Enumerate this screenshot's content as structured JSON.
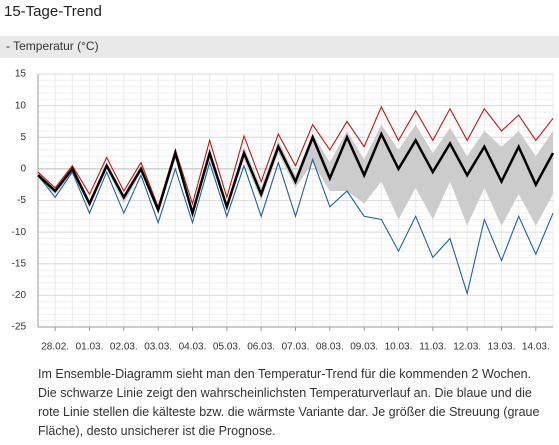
{
  "header": {
    "title": "15-Tage-Trend"
  },
  "chart_data": {
    "type": "line",
    "title": "- Temperatur (°C)",
    "categories": [
      null,
      "28.02.",
      null,
      "01.03.",
      null,
      "02.03.",
      null,
      "03.03.",
      null,
      "04.03.",
      null,
      "05.03.",
      null,
      "06.03.",
      null,
      "07.03.",
      null,
      "08.03.",
      null,
      "09.03.",
      null,
      "10.03.",
      null,
      "11.03.",
      null,
      "12.03.",
      null,
      "13.03.",
      null,
      "14.03.",
      null
    ],
    "band": {
      "color": "#cccccc",
      "upper": [
        -0.5,
        -3,
        0.5,
        -5,
        1,
        -4,
        0.5,
        -6,
        3,
        -6.5,
        3,
        -5.5,
        3.5,
        -3,
        4.5,
        -1,
        5.5,
        1,
        6,
        1.5,
        7,
        3,
        7,
        2.5,
        6.5,
        2,
        6,
        3.5,
        6,
        2,
        6
      ],
      "lower": [
        -1.5,
        -4,
        -0.5,
        -6,
        0,
        -5.5,
        -0.5,
        -7,
        1.5,
        -7.5,
        1.5,
        -6.5,
        1.5,
        -5,
        2.5,
        -3,
        1,
        -3.5,
        -3.5,
        -5.5,
        -2,
        -8,
        -3,
        -8,
        -2,
        -9,
        -3,
        -9,
        -4,
        -9,
        -4
      ]
    },
    "series": [
      {
        "color": "#cc1111",
        "values": [
          -0.5,
          -3,
          0.5,
          -4,
          1.8,
          -3.5,
          1,
          -6,
          3,
          -5.5,
          4.5,
          -4.5,
          5.2,
          -2,
          5.5,
          0.5,
          7,
          3,
          7.5,
          3.5,
          9.8,
          4.5,
          9.2,
          4.5,
          9.5,
          4.5,
          9.5,
          6,
          8.5,
          4.5,
          8
        ]
      },
      {
        "color": "#1f5fa8",
        "values": [
          -1,
          -4.5,
          -0.5,
          -7,
          -0.5,
          -7,
          -1,
          -8.5,
          0,
          -8.5,
          1,
          -7.5,
          0.5,
          -7.5,
          1,
          -7.5,
          1.5,
          -6,
          -3.5,
          -7.5,
          -8,
          -13,
          -7.5,
          -14,
          -11,
          -19.7,
          -8,
          -14.5,
          -7.5,
          -13.5,
          -7
        ]
      },
      {
        "color": "#000000",
        "values": [
          -1,
          -3.5,
          0,
          -5.5,
          0.5,
          -4.5,
          0,
          -6.5,
          2.5,
          -7,
          2.5,
          -6,
          2.5,
          -4,
          3.5,
          -2,
          5,
          -1.5,
          5,
          -1,
          5.5,
          0,
          4.5,
          -0.5,
          4,
          -1,
          3.5,
          -2,
          3.5,
          -2.5,
          2.5
        ]
      }
    ],
    "ylim": [
      -25,
      15
    ],
    "yticks": [
      -25,
      -20,
      -15,
      -10,
      -5,
      0,
      5,
      10,
      15
    ],
    "grid": true
  },
  "description": "Im Ensemble-Diagramm sieht man den Temperatur-Trend für die kommenden 2 Wochen. Die schwarze Linie zeigt den wahrscheinlichsten Temperaturverlauf an. Die blaue und die rote Linie stellen die kälteste bzw. die wärmste Variante dar. Je größer die Streuung (graue Fläche), desto unsicherer ist die Prognose."
}
